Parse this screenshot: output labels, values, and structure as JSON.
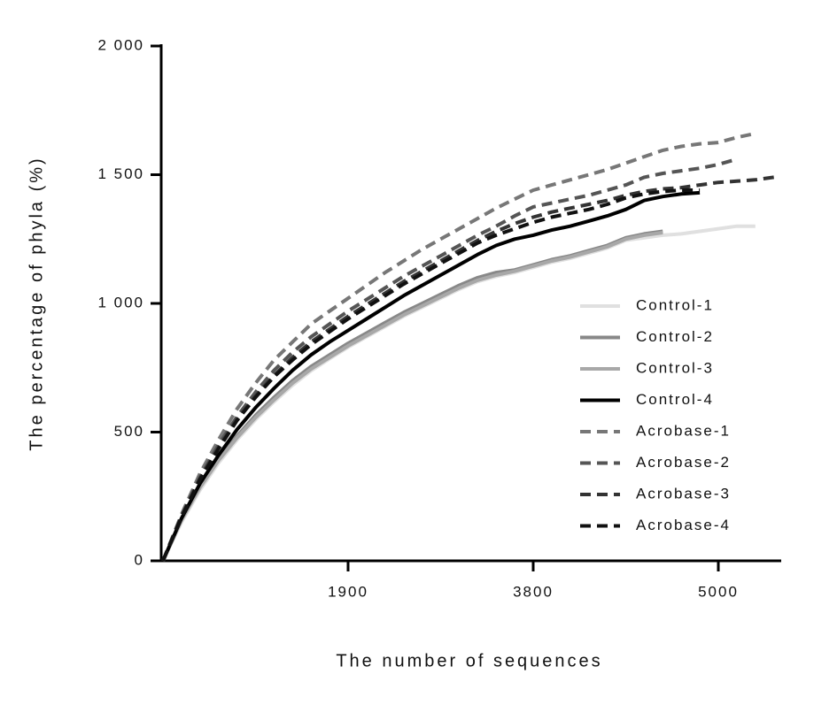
{
  "chart_data": {
    "type": "line",
    "xlabel": "The number of sequences",
    "ylabel": "The percentage of phyla (%)",
    "categories": [
      null,
      null,
      null,
      null,
      null,
      null,
      null,
      null,
      null,
      null,
      "1900",
      null,
      null,
      null,
      null,
      null,
      null,
      null,
      null,
      null,
      "3800",
      null,
      null,
      null,
      null,
      null,
      null,
      null,
      null,
      null,
      "5000",
      null,
      null,
      null
    ],
    "ylim": [
      0,
      2000
    ],
    "yticks": [
      0,
      500,
      {
        "value": 1000,
        "label": "1 000"
      },
      {
        "value": 1500,
        "label": "1 500"
      },
      {
        "value": 2000,
        "label": "2 000"
      }
    ],
    "series": [
      {
        "name": "Control-1",
        "color": "#e0e0e0",
        "style": "solid",
        "values": [
          0,
          150,
          275,
          380,
          470,
          548,
          618,
          682,
          738,
          785,
          830,
          870,
          910,
          950,
          985,
          1020,
          1055,
          1085,
          1105,
          1120,
          1140,
          1160,
          1175,
          1195,
          1215,
          1245,
          1255,
          1265,
          1270,
          1280,
          1290,
          1300,
          1300,
          null
        ]
      },
      {
        "name": "Control-2",
        "color": "#888888",
        "style": "solid",
        "values": [
          0,
          160,
          290,
          395,
          485,
          565,
          635,
          700,
          755,
          800,
          845,
          885,
          925,
          965,
          1000,
          1035,
          1070,
          1100,
          1120,
          1130,
          1150,
          1170,
          1185,
          1205,
          1225,
          1255,
          1270,
          1280,
          null,
          null,
          null,
          null,
          null,
          null
        ]
      },
      {
        "name": "Control-3",
        "color": "#a8a8a8",
        "style": "solid",
        "values": [
          0,
          158,
          285,
          390,
          478,
          556,
          625,
          690,
          745,
          790,
          835,
          875,
          915,
          955,
          990,
          1025,
          1060,
          1090,
          1110,
          1125,
          1145,
          1165,
          1180,
          1200,
          1220,
          1250,
          1265,
          1275,
          null,
          null,
          null,
          null,
          null,
          null
        ]
      },
      {
        "name": "Control-4",
        "color": "#000000",
        "style": "solid",
        "values": [
          0,
          165,
          300,
          410,
          510,
          595,
          670,
          740,
          800,
          850,
          895,
          940,
          985,
          1030,
          1070,
          1110,
          1150,
          1190,
          1225,
          1250,
          1265,
          1285,
          1300,
          1320,
          1340,
          1365,
          1400,
          1415,
          1425,
          1430,
          null,
          null,
          null,
          null
        ]
      },
      {
        "name": "Acrobase-1",
        "color": "#777777",
        "style": "dashed",
        "values": [
          0,
          180,
          340,
          470,
          590,
          690,
          780,
          850,
          920,
          970,
          1020,
          1070,
          1120,
          1165,
          1210,
          1250,
          1290,
          1330,
          1370,
          1405,
          1440,
          1460,
          1480,
          1500,
          1520,
          1545,
          1570,
          1595,
          1610,
          1620,
          1625,
          1645,
          1660,
          null
        ]
      },
      {
        "name": "Acrobase-2",
        "color": "#555555",
        "style": "dashed",
        "values": [
          0,
          175,
          325,
          450,
          560,
          655,
          740,
          810,
          870,
          920,
          970,
          1015,
          1060,
          1105,
          1145,
          1185,
          1225,
          1265,
          1300,
          1340,
          1375,
          1390,
          1405,
          1420,
          1440,
          1460,
          1490,
          1505,
          1515,
          1525,
          1540,
          1560,
          null,
          null
        ]
      },
      {
        "name": "Acrobase-3",
        "color": "#333333",
        "style": "dashed",
        "values": [
          0,
          170,
          320,
          440,
          550,
          640,
          720,
          790,
          850,
          900,
          950,
          995,
          1040,
          1085,
          1125,
          1165,
          1205,
          1245,
          1280,
          1310,
          1335,
          1355,
          1370,
          1385,
          1400,
          1420,
          1435,
          1445,
          1450,
          1460,
          1470,
          1475,
          1480,
          1490
        ]
      },
      {
        "name": "Acrobase-4",
        "color": "#111111",
        "style": "dashed",
        "values": [
          0,
          170,
          315,
          435,
          545,
          635,
          715,
          780,
          840,
          890,
          940,
          985,
          1030,
          1075,
          1115,
          1155,
          1195,
          1235,
          1265,
          1290,
          1315,
          1335,
          1350,
          1365,
          1385,
          1410,
          1425,
          1435,
          1440,
          1440,
          null,
          null,
          null,
          null
        ]
      }
    ]
  }
}
